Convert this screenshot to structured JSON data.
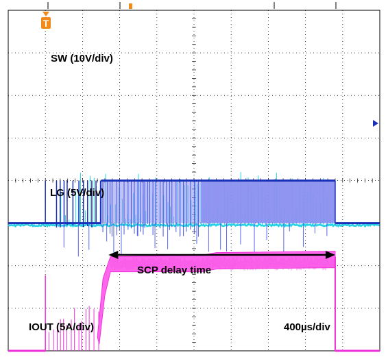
{
  "chart_data": {
    "type": "line",
    "title": "",
    "x_scale": "400µs/div",
    "x_divisions": 10,
    "y_divisions": 8,
    "grid": true,
    "top_status_text": "",
    "trigger_marker": "T",
    "channel_labels": [
      {
        "id": "sw",
        "text": "SW (10V/div)"
      },
      {
        "id": "lg",
        "text": "LG (5V/div)"
      },
      {
        "id": "iout",
        "text": "IOUT (5A/div)"
      }
    ],
    "timebase_label": "400µs/div",
    "annotation": {
      "text": "SCP delay time",
      "from_div": 2.7,
      "to_div": 8.8
    },
    "series": [
      {
        "name": "SW (10V/div)",
        "color": "#1a2fb8",
        "fill_color": "#8a8ff0",
        "unit": "div",
        "baseline_div": 3.0,
        "high_div": 4.0,
        "x_div": [
          0,
          1.0,
          1.0,
          1.3,
          1.3,
          2.5,
          2.5,
          8.8,
          8.8,
          10
        ],
        "y_div": [
          3.0,
          3.0,
          3.0,
          3.0,
          3.0,
          3.0,
          4.0,
          4.0,
          3.0,
          3.0
        ]
      },
      {
        "name": "LG (5V/div)",
        "color": "#22d3e6",
        "unit": "div",
        "baseline_div": 2.95,
        "x_div": [
          0,
          1.0,
          2.5,
          8.8,
          10
        ],
        "y_div": [
          2.95,
          2.95,
          2.95,
          2.95,
          2.95
        ]
      },
      {
        "name": "IOUT (5A/div)",
        "color": "#ee33d8",
        "fill_color": "#ff66ee",
        "unit": "div",
        "baseline_div": 0.0,
        "x_div": [
          0,
          1.0,
          1.0,
          2.4,
          2.5,
          2.7,
          5.2,
          8.8,
          8.8,
          10
        ],
        "y_div": [
          0.0,
          0.0,
          0.0,
          0.8,
          1.5,
          2.0,
          2.05,
          2.1,
          0.0,
          0.0
        ]
      }
    ]
  }
}
